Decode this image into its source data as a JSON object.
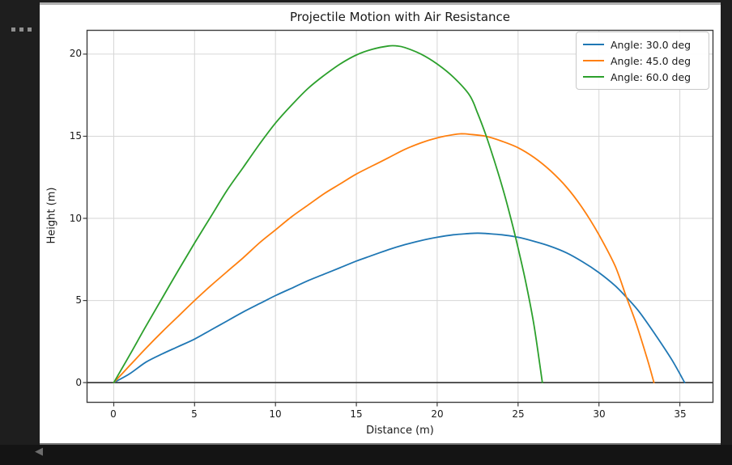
{
  "icons": {
    "more_options": "more-options-ellipsis",
    "back_arrow": "◀"
  },
  "chart_data": {
    "type": "line",
    "title": "Projectile Motion with Air Resistance",
    "xlabel": "Distance (m)",
    "ylabel": "Height (m)",
    "xlim": [
      -1.65,
      37.05
    ],
    "ylim": [
      -1.2,
      21.45
    ],
    "xticks": [
      0,
      5,
      10,
      15,
      20,
      25,
      30,
      35
    ],
    "yticks": [
      0,
      5,
      10,
      15,
      20
    ],
    "xtick_labels": [
      "0",
      "5",
      "10",
      "15",
      "20",
      "25",
      "30",
      "35"
    ],
    "ytick_labels": [
      "0",
      "5",
      "10",
      "15",
      "20"
    ],
    "grid": true,
    "zero_line": true,
    "legend_position": "upper right",
    "series": [
      {
        "name": "Angle: 30.0 deg",
        "color": "#1f77b4",
        "points": [
          [
            0,
            0
          ],
          [
            1,
            0.55
          ],
          [
            2,
            1.25
          ],
          [
            3,
            1.75
          ],
          [
            4,
            2.2
          ],
          [
            5,
            2.65
          ],
          [
            6,
            3.2
          ],
          [
            7,
            3.75
          ],
          [
            8,
            4.3
          ],
          [
            9,
            4.8
          ],
          [
            10,
            5.3
          ],
          [
            11,
            5.75
          ],
          [
            12,
            6.2
          ],
          [
            13,
            6.6
          ],
          [
            14,
            7.0
          ],
          [
            15,
            7.4
          ],
          [
            16,
            7.75
          ],
          [
            17,
            8.1
          ],
          [
            18,
            8.4
          ],
          [
            19,
            8.65
          ],
          [
            20,
            8.85
          ],
          [
            21,
            9.0
          ],
          [
            22,
            9.08
          ],
          [
            22.5,
            9.1
          ],
          [
            23,
            9.08
          ],
          [
            24,
            9.0
          ],
          [
            25,
            8.85
          ],
          [
            26,
            8.6
          ],
          [
            27,
            8.3
          ],
          [
            28,
            7.9
          ],
          [
            29,
            7.35
          ],
          [
            30,
            6.7
          ],
          [
            31,
            5.9
          ],
          [
            31.7,
            5.2
          ],
          [
            32.5,
            4.3
          ],
          [
            33.5,
            2.9
          ],
          [
            34.5,
            1.4
          ],
          [
            35.3,
            0
          ]
        ]
      },
      {
        "name": "Angle: 45.0 deg",
        "color": "#ff7f0e",
        "points": [
          [
            0,
            0
          ],
          [
            1,
            1.05
          ],
          [
            2,
            2.1
          ],
          [
            3,
            3.1
          ],
          [
            4,
            4.05
          ],
          [
            5,
            5.0
          ],
          [
            6,
            5.9
          ],
          [
            7,
            6.75
          ],
          [
            8,
            7.6
          ],
          [
            9,
            8.5
          ],
          [
            10,
            9.3
          ],
          [
            11,
            10.1
          ],
          [
            12,
            10.8
          ],
          [
            13,
            11.5
          ],
          [
            14,
            12.1
          ],
          [
            15,
            12.7
          ],
          [
            16,
            13.2
          ],
          [
            17,
            13.7
          ],
          [
            18,
            14.2
          ],
          [
            19,
            14.6
          ],
          [
            20,
            14.9
          ],
          [
            21,
            15.1
          ],
          [
            21.5,
            15.15
          ],
          [
            22,
            15.12
          ],
          [
            23,
            15.0
          ],
          [
            24,
            14.7
          ],
          [
            25,
            14.3
          ],
          [
            26,
            13.7
          ],
          [
            27,
            12.9
          ],
          [
            28,
            11.9
          ],
          [
            29,
            10.6
          ],
          [
            30,
            9.0
          ],
          [
            31,
            7.1
          ],
          [
            31.7,
            5.2
          ],
          [
            32.3,
            3.6
          ],
          [
            33,
            1.4
          ],
          [
            33.4,
            0
          ]
        ]
      },
      {
        "name": "Angle: 60.0 deg",
        "color": "#2ca02c",
        "points": [
          [
            0,
            0
          ],
          [
            1,
            1.7
          ],
          [
            2,
            3.45
          ],
          [
            3,
            5.15
          ],
          [
            4,
            6.85
          ],
          [
            5,
            8.5
          ],
          [
            6,
            10.1
          ],
          [
            7,
            11.7
          ],
          [
            8,
            13.1
          ],
          [
            9,
            14.5
          ],
          [
            10,
            15.8
          ],
          [
            11,
            16.9
          ],
          [
            12,
            17.9
          ],
          [
            13,
            18.7
          ],
          [
            14,
            19.4
          ],
          [
            15,
            19.95
          ],
          [
            16,
            20.3
          ],
          [
            17,
            20.5
          ],
          [
            17.5,
            20.5
          ],
          [
            18,
            20.4
          ],
          [
            19,
            20.0
          ],
          [
            20,
            19.4
          ],
          [
            21,
            18.6
          ],
          [
            22,
            17.5
          ],
          [
            22.5,
            16.4
          ],
          [
            23,
            15.1
          ],
          [
            23.5,
            13.6
          ],
          [
            24,
            12.0
          ],
          [
            24.5,
            10.2
          ],
          [
            25,
            8.2
          ],
          [
            25.5,
            6.0
          ],
          [
            26,
            3.4
          ],
          [
            26.5,
            0
          ]
        ]
      }
    ]
  }
}
